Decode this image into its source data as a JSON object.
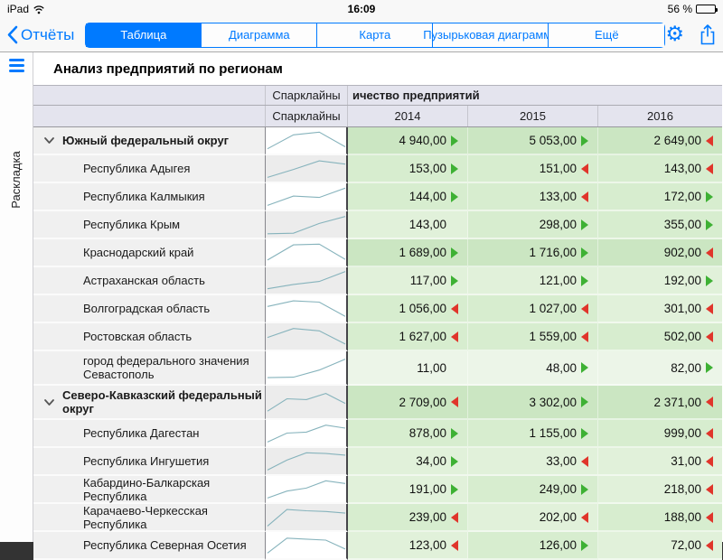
{
  "status_bar": {
    "device": "iPad",
    "time": "16:09",
    "battery_percent": "56 %"
  },
  "navbar": {
    "back_label": "Отчёты",
    "tabs": [
      {
        "label": "Таблица",
        "selected": true
      },
      {
        "label": "Диаграмма",
        "selected": false
      },
      {
        "label": "Карта",
        "selected": false
      },
      {
        "label": "Пузырьковая диаграмма",
        "selected": false
      },
      {
        "label": "Ещё",
        "selected": false
      }
    ],
    "icons": [
      "gear-icon",
      "share-icon"
    ]
  },
  "sidebar": {
    "layout_label": "Раскладка",
    "icon": "hamburger-icon"
  },
  "page": {
    "title": "Анализ предприятий по регионам"
  },
  "table": {
    "header": {
      "sparklines_label": "Спарклайны",
      "measure_label": "ичество предприятий",
      "years": [
        "2014",
        "2015",
        "2016"
      ]
    },
    "rows": [
      {
        "name": "Южный федеральный округ",
        "group": true,
        "spark": [
          0.08,
          0.78,
          0.92,
          0.18
        ],
        "cells": [
          {
            "v": "4 940,00",
            "arrow": "up",
            "shade": "d"
          },
          {
            "v": "5 053,00",
            "arrow": "up",
            "shade": "d"
          },
          {
            "v": "2 649,00",
            "arrow": "down",
            "shade": "d"
          }
        ]
      },
      {
        "name": "Республика Адыгея",
        "group": false,
        "spark": [
          0.05,
          0.45,
          0.88,
          0.72
        ],
        "cells": [
          {
            "v": "153,00",
            "arrow": "up",
            "shade": "m"
          },
          {
            "v": "151,00",
            "arrow": "down",
            "shade": "m"
          },
          {
            "v": "143,00",
            "arrow": "down",
            "shade": "m"
          }
        ]
      },
      {
        "name": "Республика Калмыкия",
        "group": false,
        "spark": [
          0.05,
          0.52,
          0.45,
          0.92
        ],
        "cells": [
          {
            "v": "144,00",
            "arrow": "up",
            "shade": "m"
          },
          {
            "v": "133,00",
            "arrow": "down",
            "shade": "m"
          },
          {
            "v": "172,00",
            "arrow": "up",
            "shade": "m"
          }
        ]
      },
      {
        "name": "Республика Крым",
        "group": false,
        "spark": [
          0.03,
          0.06,
          0.55,
          0.9
        ],
        "cells": [
          {
            "v": "143,00",
            "arrow": "none",
            "shade": "l"
          },
          {
            "v": "298,00",
            "arrow": "up",
            "shade": "m"
          },
          {
            "v": "355,00",
            "arrow": "up",
            "shade": "m"
          }
        ]
      },
      {
        "name": "Краснодарский край",
        "group": false,
        "spark": [
          0.12,
          0.88,
          0.92,
          0.15
        ],
        "cells": [
          {
            "v": "1 689,00",
            "arrow": "up",
            "shade": "d"
          },
          {
            "v": "1 716,00",
            "arrow": "up",
            "shade": "d"
          },
          {
            "v": "902,00",
            "arrow": "down",
            "shade": "d"
          }
        ]
      },
      {
        "name": "Астраханская область",
        "group": false,
        "spark": [
          0.08,
          0.3,
          0.45,
          0.95
        ],
        "cells": [
          {
            "v": "117,00",
            "arrow": "up",
            "shade": "l"
          },
          {
            "v": "121,00",
            "arrow": "up",
            "shade": "l"
          },
          {
            "v": "192,00",
            "arrow": "up",
            "shade": "l"
          }
        ]
      },
      {
        "name": "Волгоградская область",
        "group": false,
        "spark": [
          0.6,
          0.88,
          0.82,
          0.1
        ],
        "cells": [
          {
            "v": "1 056,00",
            "arrow": "down",
            "shade": "m"
          },
          {
            "v": "1 027,00",
            "arrow": "down",
            "shade": "m"
          },
          {
            "v": "301,00",
            "arrow": "down",
            "shade": "l"
          }
        ]
      },
      {
        "name": "Ростовская область",
        "group": false,
        "spark": [
          0.45,
          0.9,
          0.78,
          0.12
        ],
        "cells": [
          {
            "v": "1 627,00",
            "arrow": "down",
            "shade": "m"
          },
          {
            "v": "1 559,00",
            "arrow": "down",
            "shade": "m"
          },
          {
            "v": "502,00",
            "arrow": "down",
            "shade": "m"
          }
        ]
      },
      {
        "name": "город федерального значения Севастополь",
        "group": false,
        "spark": [
          0.02,
          0.04,
          0.4,
          0.95
        ],
        "cells": [
          {
            "v": "11,00",
            "arrow": "none",
            "shade": "p"
          },
          {
            "v": "48,00",
            "arrow": "up",
            "shade": "p"
          },
          {
            "v": "82,00",
            "arrow": "up",
            "shade": "p"
          }
        ]
      },
      {
        "name": "Северо-Кавказский федеральный округ",
        "group": true,
        "spark": [
          0.06,
          0.68,
          0.64,
          0.95,
          0.45
        ],
        "cells": [
          {
            "v": "2 709,00",
            "arrow": "down",
            "shade": "d"
          },
          {
            "v": "3 302,00",
            "arrow": "up",
            "shade": "d"
          },
          {
            "v": "2 371,00",
            "arrow": "down",
            "shade": "d"
          }
        ]
      },
      {
        "name": "Республика Дагестан",
        "group": false,
        "spark": [
          0.05,
          0.5,
          0.55,
          0.9,
          0.75
        ],
        "cells": [
          {
            "v": "878,00",
            "arrow": "up",
            "shade": "m"
          },
          {
            "v": "1 155,00",
            "arrow": "up",
            "shade": "m"
          },
          {
            "v": "999,00",
            "arrow": "down",
            "shade": "m"
          }
        ]
      },
      {
        "name": "Республика Ингушетия",
        "group": false,
        "spark": [
          0.05,
          0.55,
          0.92,
          0.88,
          0.8
        ],
        "cells": [
          {
            "v": "34,00",
            "arrow": "up",
            "shade": "l"
          },
          {
            "v": "33,00",
            "arrow": "down",
            "shade": "l"
          },
          {
            "v": "31,00",
            "arrow": "down",
            "shade": "l"
          }
        ]
      },
      {
        "name": "Кабардино-Балкарская Республика",
        "group": false,
        "spark": [
          0.05,
          0.4,
          0.55,
          0.92,
          0.78
        ],
        "cells": [
          {
            "v": "191,00",
            "arrow": "up",
            "shade": "l"
          },
          {
            "v": "249,00",
            "arrow": "up",
            "shade": "m"
          },
          {
            "v": "218,00",
            "arrow": "down",
            "shade": "l"
          }
        ]
      },
      {
        "name": "Карачаево-Черкесская Республика",
        "group": false,
        "spark": [
          0.05,
          0.88,
          0.82,
          0.78,
          0.7
        ],
        "cells": [
          {
            "v": "239,00",
            "arrow": "down",
            "shade": "m"
          },
          {
            "v": "202,00",
            "arrow": "down",
            "shade": "l"
          },
          {
            "v": "188,00",
            "arrow": "down",
            "shade": "m"
          }
        ]
      },
      {
        "name": "Республика Северная Осетия",
        "group": false,
        "spark": [
          0.1,
          0.85,
          0.8,
          0.75,
          0.3
        ],
        "cells": [
          {
            "v": "123,00",
            "arrow": "down",
            "shade": "l"
          },
          {
            "v": "126,00",
            "arrow": "up",
            "shade": "m"
          },
          {
            "v": "72,00",
            "arrow": "down",
            "shade": "l"
          }
        ]
      }
    ]
  },
  "colors": {
    "accent": "#007aff",
    "arrow_up_green": "#3eb134",
    "arrow_down_red": "#e0352b",
    "sparkline_stroke": "#86b3bc",
    "header_bg": "#e4e4ee",
    "cell_shade_dark": "#cbe6c2",
    "cell_shade_medium": "#d7edcf",
    "cell_shade_light": "#e1f1da",
    "cell_shade_pale": "#ecf5e8"
  }
}
